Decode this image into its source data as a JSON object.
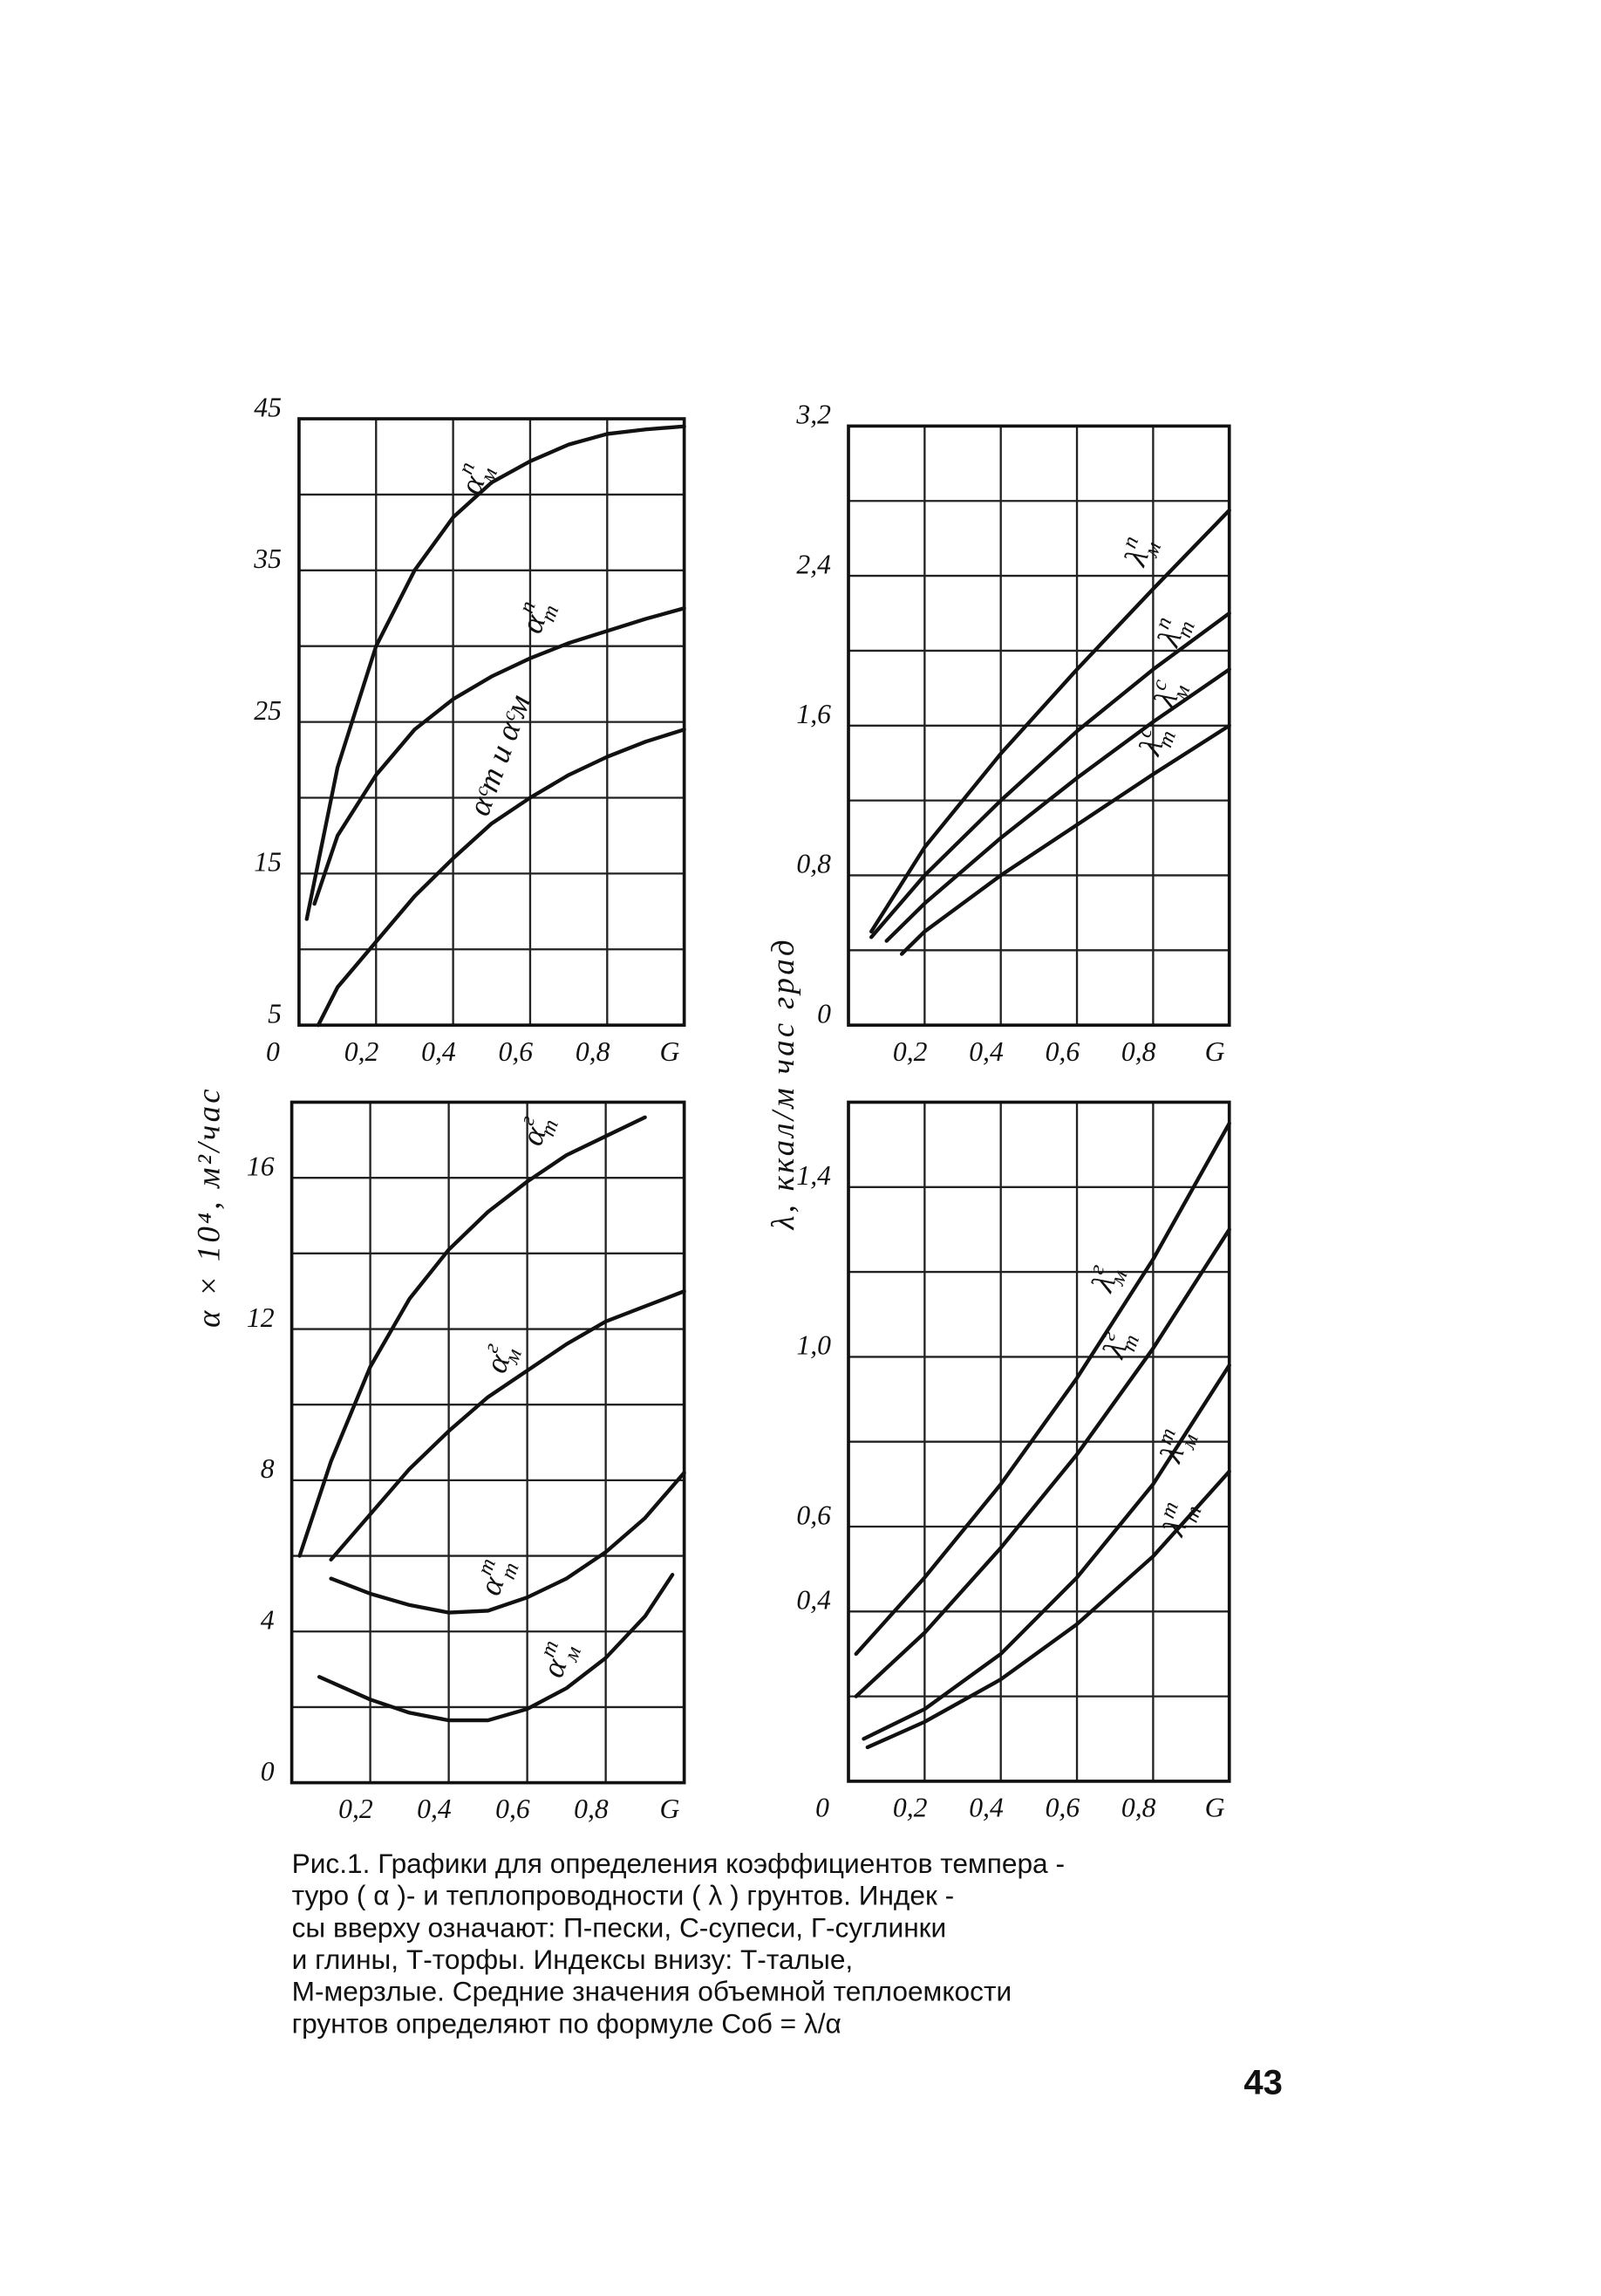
{
  "chart_data": [
    {
      "type": "line",
      "ylabel": "α × 10⁴, м²/час",
      "ylim": [
        5,
        45
      ],
      "yticks": [
        5,
        15,
        25,
        35,
        45
      ],
      "ygrid": [
        5,
        10,
        15,
        20,
        25,
        30,
        35,
        40,
        45
      ],
      "xlim": [
        0,
        1
      ],
      "xticks": [
        0,
        {
          "value": 0.2,
          "label": "0,2"
        },
        {
          "value": 0.4,
          "label": "0,4"
        },
        {
          "value": 0.6,
          "label": "0,6"
        },
        {
          "value": 0.8,
          "label": "0,8"
        },
        {
          "value": 1,
          "label": "G"
        }
      ],
      "grid": true,
      "series": [
        {
          "name": "α",
          "sup": "п",
          "sub": "м",
          "color": "#111",
          "x": [
            0.02,
            0.1,
            0.2,
            0.3,
            0.4,
            0.5,
            0.6,
            0.7,
            0.8,
            0.9,
            1.0
          ],
          "values": [
            12,
            22,
            30,
            35,
            38.5,
            40.8,
            42.2,
            43.3,
            44,
            44.3,
            44.5
          ]
        },
        {
          "name": "α",
          "sup": "п",
          "sub": "т",
          "color": "#111",
          "x": [
            0.04,
            0.1,
            0.2,
            0.3,
            0.4,
            0.5,
            0.6,
            0.7,
            0.8,
            0.9,
            1.0
          ],
          "values": [
            13,
            17.5,
            21.5,
            24.5,
            26.5,
            28,
            29.2,
            30.2,
            31,
            31.8,
            32.5
          ]
        },
        {
          "name": "αᶜт и αᶜм",
          "color": "#111",
          "x": [
            0.05,
            0.1,
            0.2,
            0.3,
            0.4,
            0.5,
            0.6,
            0.7,
            0.8,
            0.9,
            1.0
          ],
          "values": [
            5,
            7.5,
            10.5,
            13.5,
            16,
            18.3,
            20,
            21.5,
            22.7,
            23.7,
            24.5
          ]
        }
      ]
    },
    {
      "type": "line",
      "ylabel": "λ, ккал/м час град",
      "ylim": [
        0,
        3.2
      ],
      "yticks": [
        0,
        {
          "value": 0.8,
          "label": "0,8"
        },
        {
          "value": 1.6,
          "label": "1,6"
        },
        {
          "value": 2.4,
          "label": "2,4"
        },
        {
          "value": 3.2,
          "label": "3,2"
        }
      ],
      "ygrid": [
        0,
        0.4,
        0.8,
        1.2,
        1.6,
        2.0,
        2.4,
        2.8,
        3.2
      ],
      "xlim": [
        0,
        1
      ],
      "xticks": [
        {
          "value": 0.2,
          "label": "0,2"
        },
        {
          "value": 0.4,
          "label": "0,4"
        },
        {
          "value": 0.6,
          "label": "0,6"
        },
        {
          "value": 0.8,
          "label": "0,8"
        },
        {
          "value": 1,
          "label": "G"
        }
      ],
      "grid": true,
      "series": [
        {
          "name": "λ",
          "sup": "п",
          "sub": "м",
          "color": "#111",
          "x": [
            0.06,
            0.2,
            0.4,
            0.6,
            0.8,
            1.0
          ],
          "values": [
            0.5,
            0.95,
            1.45,
            1.9,
            2.33,
            2.75
          ]
        },
        {
          "name": "λ",
          "sup": "п",
          "sub": "т",
          "color": "#111",
          "x": [
            0.06,
            0.2,
            0.4,
            0.6,
            0.8,
            1.0
          ],
          "values": [
            0.47,
            0.8,
            1.2,
            1.57,
            1.9,
            2.2
          ]
        },
        {
          "name": "λ",
          "sup": "с",
          "sub": "м",
          "color": "#111",
          "x": [
            0.1,
            0.2,
            0.4,
            0.6,
            0.8,
            1.0
          ],
          "values": [
            0.45,
            0.65,
            1.0,
            1.32,
            1.62,
            1.9
          ]
        },
        {
          "name": "λ",
          "sup": "с",
          "sub": "т",
          "color": "#111",
          "x": [
            0.14,
            0.2,
            0.4,
            0.6,
            0.8,
            1.0
          ],
          "values": [
            0.38,
            0.5,
            0.8,
            1.07,
            1.34,
            1.6
          ]
        }
      ]
    },
    {
      "type": "line",
      "ylim": [
        0,
        18
      ],
      "yticks": [
        0,
        4,
        8,
        12,
        16
      ],
      "ygrid": [
        0,
        2,
        4,
        6,
        8,
        10,
        12,
        14,
        16,
        18
      ],
      "xlim": [
        0,
        1
      ],
      "xticks": [
        {
          "value": 0.2,
          "label": "0,2"
        },
        {
          "value": 0.4,
          "label": "0,4"
        },
        {
          "value": 0.6,
          "label": "0,6"
        },
        {
          "value": 0.8,
          "label": "0,8"
        },
        {
          "value": 1,
          "label": "G"
        }
      ],
      "grid": true,
      "series": [
        {
          "name": "α",
          "sup": "г",
          "sub": "т",
          "color": "#111",
          "x": [
            0.02,
            0.1,
            0.2,
            0.3,
            0.4,
            0.5,
            0.6,
            0.7,
            0.8,
            0.9
          ],
          "values": [
            6,
            8.5,
            11,
            12.8,
            14.1,
            15.1,
            15.9,
            16.6,
            17.1,
            17.6
          ]
        },
        {
          "name": "α",
          "sup": "г",
          "sub": "м",
          "color": "#111",
          "x": [
            0.1,
            0.2,
            0.3,
            0.4,
            0.5,
            0.6,
            0.7,
            0.8,
            0.9,
            1.0
          ],
          "values": [
            5.9,
            7.1,
            8.3,
            9.3,
            10.2,
            10.9,
            11.6,
            12.2,
            12.6,
            13
          ]
        },
        {
          "name": "α",
          "sup": "т",
          "sub": "т",
          "color": "#111",
          "x": [
            0.1,
            0.2,
            0.3,
            0.4,
            0.5,
            0.6,
            0.7,
            0.8,
            0.9,
            1.0
          ],
          "values": [
            5.4,
            5.0,
            4.7,
            4.5,
            4.55,
            4.9,
            5.4,
            6.1,
            7.0,
            8.2
          ]
        },
        {
          "name": "α",
          "sup": "т",
          "sub": "м",
          "color": "#111",
          "x": [
            0.07,
            0.2,
            0.3,
            0.4,
            0.5,
            0.6,
            0.7,
            0.8,
            0.9,
            0.97
          ],
          "values": [
            2.8,
            2.2,
            1.85,
            1.65,
            1.65,
            1.95,
            2.5,
            3.3,
            4.4,
            5.5
          ]
        }
      ]
    },
    {
      "type": "line",
      "ylim": [
        0,
        1.6
      ],
      "yticks": [
        {
          "value": 0.4,
          "label": "0,4"
        },
        {
          "value": 0.6,
          "label": "0,6"
        },
        {
          "value": 1.0,
          "label": "1,0"
        },
        {
          "value": 1.4,
          "label": "1,4"
        }
      ],
      "ygrid": [
        0,
        0.2,
        0.4,
        0.6,
        0.8,
        1.0,
        1.2,
        1.4,
        1.6
      ],
      "xlim": [
        0,
        1
      ],
      "xticks": [
        0,
        {
          "value": 0.2,
          "label": "0,2"
        },
        {
          "value": 0.4,
          "label": "0,4"
        },
        {
          "value": 0.6,
          "label": "0,6"
        },
        {
          "value": 0.8,
          "label": "0,8"
        },
        {
          "value": 1,
          "label": "G"
        }
      ],
      "grid": true,
      "series": [
        {
          "name": "λ",
          "sup": "г",
          "sub": "м",
          "color": "#111",
          "x": [
            0.02,
            0.2,
            0.4,
            0.6,
            0.8,
            1.0
          ],
          "values": [
            0.3,
            0.48,
            0.7,
            0.95,
            1.23,
            1.55
          ]
        },
        {
          "name": "λ",
          "sup": "г",
          "sub": "т",
          "color": "#111",
          "x": [
            0.02,
            0.2,
            0.4,
            0.6,
            0.8,
            1.0
          ],
          "values": [
            0.2,
            0.35,
            0.55,
            0.77,
            1.02,
            1.3
          ]
        },
        {
          "name": "λ",
          "sup": "т",
          "sub": "м",
          "color": "#111",
          "x": [
            0.04,
            0.2,
            0.4,
            0.6,
            0.8,
            1.0
          ],
          "values": [
            0.1,
            0.17,
            0.3,
            0.48,
            0.7,
            0.98
          ]
        },
        {
          "name": "λ",
          "sup": "т",
          "sub": "т",
          "color": "#111",
          "x": [
            0.05,
            0.2,
            0.4,
            0.6,
            0.8,
            1.0
          ],
          "values": [
            0.08,
            0.14,
            0.24,
            0.37,
            0.53,
            0.73
          ]
        }
      ]
    }
  ],
  "caption": [
    "Рис.1. Графики для определения коэффициентов темпера -",
    "туро ( α )- и теплопроводности ( λ ) грунтов. Индек -",
    "сы вверху означают: П-пески, С-супеси, Г-суглинки",
    "и глины, Т-торфы. Индексы внизу: Т-талые,",
    "М-мерзлые. Средние значения объемной теплоемкости",
    "грунтов определяют по формуле  Cоб = λ/α"
  ],
  "page_number": "43"
}
